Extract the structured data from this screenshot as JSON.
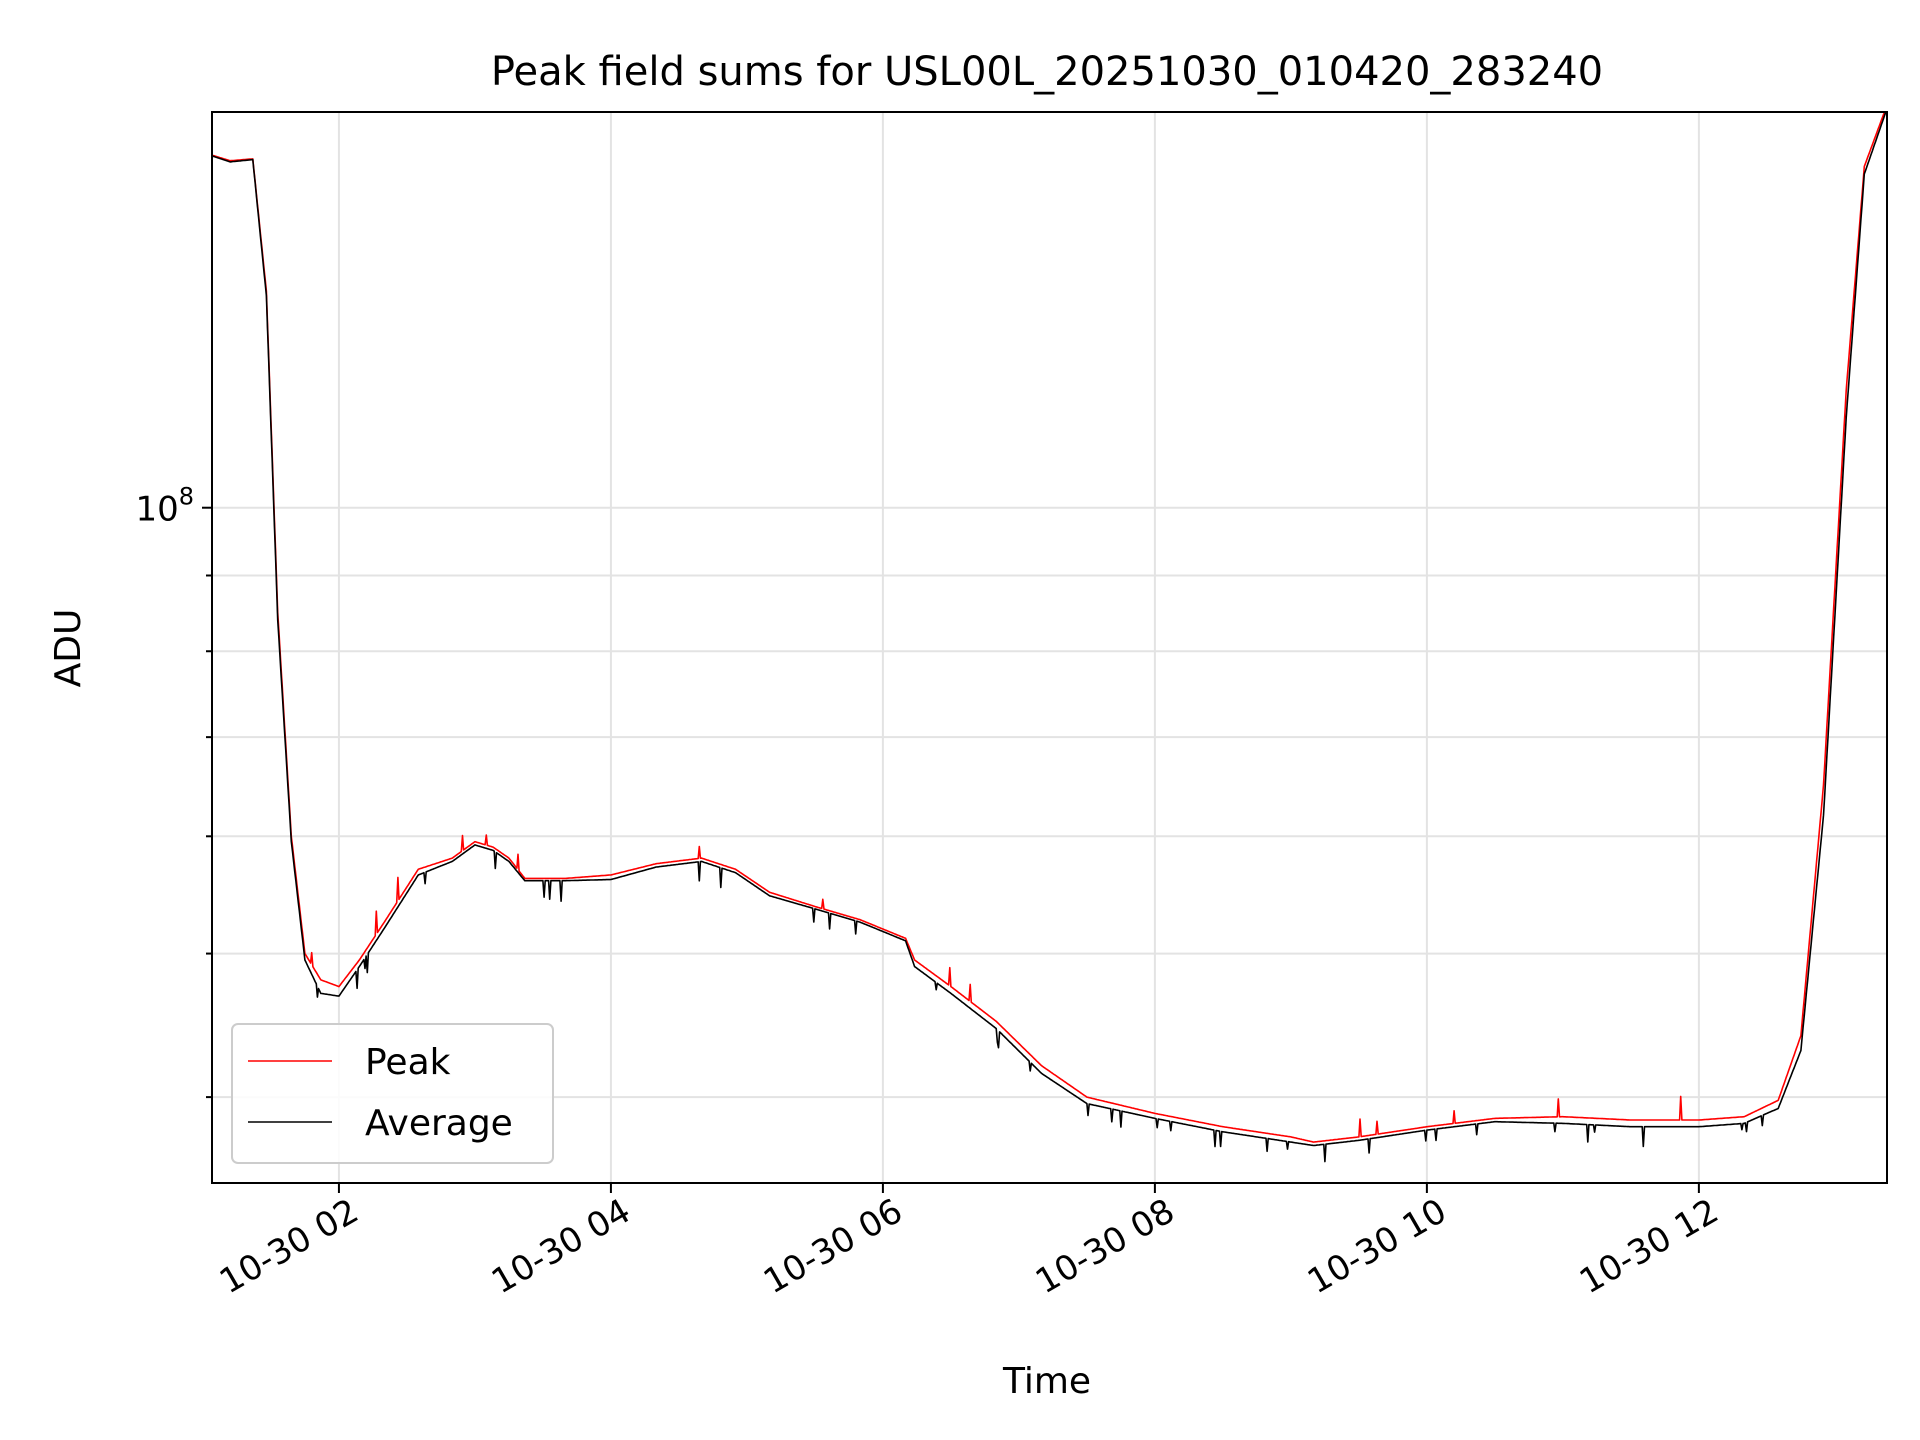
{
  "chart_data": {
    "type": "line",
    "title": "Peak field sums for USL00L_20251030_010420_283240",
    "xlabel": "Time",
    "ylabel": "ADU",
    "x_tick_labels": [
      "10-30 02",
      "10-30 04",
      "10-30 06",
      "10-30 08",
      "10-30 10",
      "10-30 12"
    ],
    "y_tick_labels": [
      {
        "base": "10",
        "exponent": "8",
        "value": 100000000
      }
    ],
    "y_scale": "log",
    "xlim": [
      "2025-10-30 01:04",
      "2025-10-30 13:23"
    ],
    "ylim": [
      35000000,
      185000000
    ],
    "grid": true,
    "legend": {
      "position": "lower left"
    },
    "colors": {
      "Peak": "#ff0000",
      "Average": "#000000"
    },
    "series": [
      {
        "name": "Peak",
        "x": [
          "2025-10-30 01:04",
          "2025-10-30 01:12",
          "2025-10-30 01:22",
          "2025-10-30 01:28",
          "2025-10-30 01:33",
          "2025-10-30 01:39",
          "2025-10-30 01:45",
          "2025-10-30 01:52",
          "2025-10-30 02:00",
          "2025-10-30 02:09",
          "2025-10-30 02:20",
          "2025-10-30 02:35",
          "2025-10-30 02:50",
          "2025-10-30 03:00",
          "2025-10-30 03:08",
          "2025-10-30 03:15",
          "2025-10-30 03:22",
          "2025-10-30 03:40",
          "2025-10-30 04:00",
          "2025-10-30 04:20",
          "2025-10-30 04:40",
          "2025-10-30 04:55",
          "2025-10-30 05:10",
          "2025-10-30 05:30",
          "2025-10-30 05:50",
          "2025-10-30 06:10",
          "2025-10-30 06:14",
          "2025-10-30 06:30",
          "2025-10-30 06:50",
          "2025-10-30 07:10",
          "2025-10-30 07:30",
          "2025-10-30 08:00",
          "2025-10-30 08:30",
          "2025-10-30 09:00",
          "2025-10-30 09:10",
          "2025-10-30 09:30",
          "2025-10-30 10:00",
          "2025-10-30 10:30",
          "2025-10-30 11:00",
          "2025-10-30 11:30",
          "2025-10-30 12:00",
          "2025-10-30 12:20",
          "2025-10-30 12:35",
          "2025-10-30 12:45",
          "2025-10-30 12:55",
          "2025-10-30 13:05",
          "2025-10-30 13:13",
          "2025-10-30 13:23"
        ],
        "y": [
          173000000,
          171500000,
          172000000,
          140000000,
          85000000,
          60000000,
          50000000,
          48000000,
          47500000,
          49500000,
          52500000,
          57000000,
          58000000,
          59500000,
          59000000,
          58000000,
          56200000,
          56200000,
          56500000,
          57500000,
          58000000,
          57000000,
          55000000,
          53800000,
          52700000,
          51200000,
          49500000,
          47500000,
          45000000,
          42000000,
          40000000,
          39000000,
          38200000,
          37600000,
          37300000,
          37600000,
          38200000,
          38700000,
          38800000,
          38600000,
          38600000,
          38800000,
          39800000,
          44000000,
          65000000,
          120000000,
          170000000,
          187000000
        ]
      },
      {
        "name": "Average",
        "x": [
          "2025-10-30 01:04",
          "2025-10-30 01:12",
          "2025-10-30 01:22",
          "2025-10-30 01:28",
          "2025-10-30 01:33",
          "2025-10-30 01:39",
          "2025-10-30 01:45",
          "2025-10-30 01:52",
          "2025-10-30 02:00",
          "2025-10-30 02:09",
          "2025-10-30 02:20",
          "2025-10-30 02:35",
          "2025-10-30 02:50",
          "2025-10-30 03:00",
          "2025-10-30 03:08",
          "2025-10-30 03:15",
          "2025-10-30 03:22",
          "2025-10-30 03:40",
          "2025-10-30 04:00",
          "2025-10-30 04:20",
          "2025-10-30 04:40",
          "2025-10-30 04:55",
          "2025-10-30 05:10",
          "2025-10-30 05:30",
          "2025-10-30 05:50",
          "2025-10-30 06:10",
          "2025-10-30 06:14",
          "2025-10-30 06:30",
          "2025-10-30 06:50",
          "2025-10-30 07:10",
          "2025-10-30 07:30",
          "2025-10-30 08:00",
          "2025-10-30 08:30",
          "2025-10-30 09:00",
          "2025-10-30 09:10",
          "2025-10-30 09:30",
          "2025-10-30 10:00",
          "2025-10-30 10:30",
          "2025-10-30 11:00",
          "2025-10-30 11:30",
          "2025-10-30 12:00",
          "2025-10-30 12:20",
          "2025-10-30 12:35",
          "2025-10-30 12:45",
          "2025-10-30 12:55",
          "2025-10-30 13:05",
          "2025-10-30 13:13",
          "2025-10-30 13:23"
        ],
        "y": [
          172800000,
          171200000,
          171800000,
          139000000,
          84000000,
          59500000,
          49500000,
          47000000,
          46800000,
          49000000,
          52000000,
          56500000,
          57700000,
          59200000,
          58700000,
          57700000,
          56000000,
          56000000,
          56100000,
          57200000,
          57700000,
          56700000,
          54700000,
          53600000,
          52500000,
          51000000,
          49000000,
          47000000,
          44500000,
          41500000,
          39600000,
          38700000,
          37900000,
          37300000,
          37100000,
          37400000,
          38000000,
          38500000,
          38400000,
          38200000,
          38200000,
          38400000,
          39300000,
          43000000,
          62000000,
          115000000,
          168000000,
          186000000
        ]
      }
    ]
  }
}
